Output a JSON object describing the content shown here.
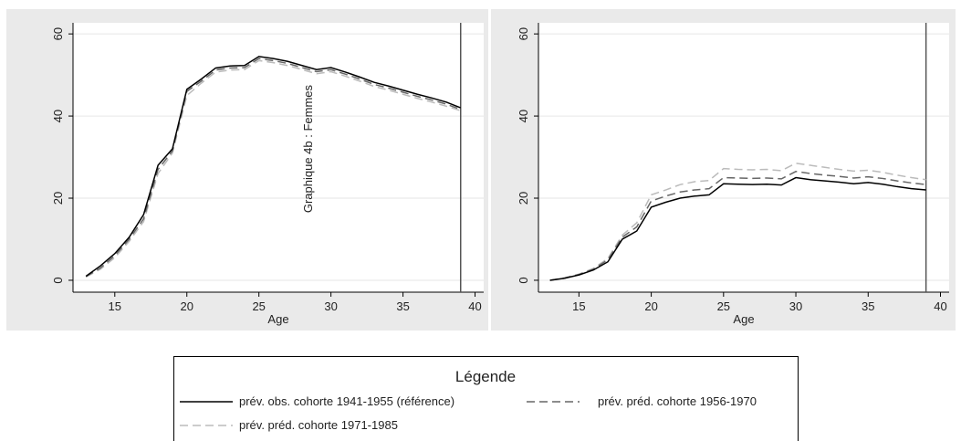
{
  "chart_data": [
    {
      "type": "line",
      "annotation": "Graphique 4b : Femmes",
      "xlabel": "Age",
      "x": [
        13,
        14,
        15,
        16,
        17,
        18,
        19,
        20,
        21,
        22,
        23,
        24,
        25,
        26,
        27,
        28,
        29,
        30,
        31,
        32,
        33,
        34,
        35,
        36,
        37,
        38,
        39
      ],
      "xlim": [
        12.1,
        40.6
      ],
      "xticks": [
        15,
        20,
        25,
        30,
        35,
        40
      ],
      "ylim": [
        -2.9,
        62.7
      ],
      "yticks": [
        0,
        20,
        40,
        60
      ],
      "grid": true,
      "vline": 39,
      "series": [
        {
          "name": "prév. obs. cohorte 1941-1955 (référence)",
          "color": "#000000",
          "dash": "none",
          "values": [
            1,
            3.5,
            6.5,
            10.5,
            16,
            28,
            32,
            46.5,
            49,
            51.7,
            52.2,
            52.3,
            54.5,
            54,
            53.3,
            52.3,
            51.3,
            51.8,
            50.7,
            49.5,
            48.2,
            47.3,
            46.3,
            45.3,
            44.4,
            43.4,
            42
          ]
        },
        {
          "name": "prév. préd. cohorte 1956-1970",
          "color": "#666666",
          "dash": "9,5",
          "values": [
            0.9,
            3,
            6,
            10,
            15,
            27,
            31.5,
            46,
            48.5,
            51.2,
            51.7,
            51.8,
            54,
            53.5,
            52.8,
            51.8,
            50.8,
            51.3,
            50.2,
            49,
            47.7,
            46.8,
            45.8,
            44.8,
            43.9,
            42.9,
            41.6
          ]
        },
        {
          "name": "prév. préd. cohorte 1971-1985",
          "color": "#bbbbbb",
          "dash": "9,5",
          "values": [
            0.8,
            2.7,
            5.5,
            9.5,
            14.3,
            26,
            31,
            45,
            48,
            50.7,
            51.2,
            51.3,
            53.5,
            53,
            52.3,
            51.3,
            50.3,
            50.8,
            49.7,
            48.5,
            47.2,
            46.3,
            45.3,
            44.3,
            43.4,
            42.4,
            41.3
          ]
        }
      ]
    },
    {
      "type": "line",
      "xlabel": "Age",
      "x": [
        13,
        14,
        15,
        16,
        17,
        18,
        19,
        20,
        21,
        22,
        23,
        24,
        25,
        26,
        27,
        28,
        29,
        30,
        31,
        32,
        33,
        34,
        35,
        36,
        37,
        38,
        39
      ],
      "xlim": [
        12.2,
        40.6
      ],
      "xticks": [
        15,
        20,
        25,
        30,
        35,
        40
      ],
      "ylim": [
        -2.9,
        62.7
      ],
      "yticks": [
        0,
        20,
        40,
        60
      ],
      "grid": true,
      "vline": 39,
      "series": [
        {
          "color": "#000000",
          "dash": "none",
          "values": [
            0,
            0.5,
            1.3,
            2.5,
            4.5,
            10,
            12,
            17.8,
            19,
            20,
            20.5,
            20.8,
            23.5,
            23.4,
            23.3,
            23.4,
            23.2,
            25,
            24.5,
            24.2,
            23.9,
            23.5,
            23.8,
            23.4,
            22.8,
            22.3,
            22
          ]
        },
        {
          "color": "#666666",
          "dash": "9,5",
          "values": [
            0,
            0.5,
            1.4,
            2.7,
            5,
            10.5,
            13,
            19.3,
            20.5,
            21.5,
            22,
            22.3,
            25,
            24.9,
            24.8,
            24.9,
            24.7,
            26.5,
            26,
            25.6,
            25.3,
            24.9,
            25.2,
            24.8,
            24.2,
            23.7,
            23.3
          ]
        },
        {
          "color": "#bbbbbb",
          "dash": "9,5",
          "values": [
            0,
            0.6,
            1.5,
            2.9,
            5.3,
            11,
            14,
            20.8,
            22,
            23.3,
            24,
            24.3,
            27.2,
            27,
            26.9,
            27,
            26.7,
            28.5,
            28,
            27.5,
            27,
            26.6,
            26.8,
            26.3,
            25.6,
            25,
            24.5
          ]
        }
      ]
    }
  ],
  "legend": {
    "title": "Légende"
  }
}
